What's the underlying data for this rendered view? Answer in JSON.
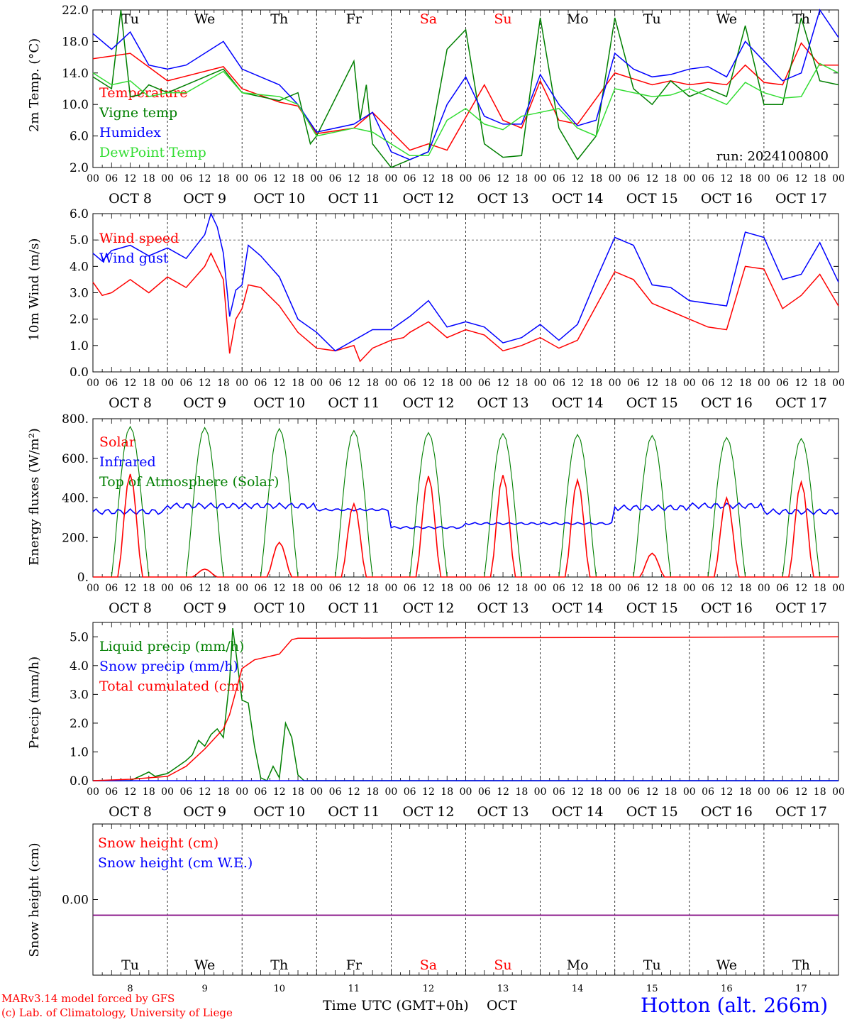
{
  "colors": {
    "red": "#ff0000",
    "green": "#007f00",
    "blue": "#0000ff",
    "lime": "#33dd33",
    "purple": "#7f007f",
    "grid": "#000000"
  },
  "x_axis": {
    "hour_ticks": [
      "00",
      "06",
      "12",
      "18"
    ],
    "day_labels": [
      "OCT  8",
      "OCT  9",
      "OCT 10",
      "OCT 11",
      "OCT 12",
      "OCT 13",
      "OCT 14",
      "OCT 15",
      "OCT 16",
      "OCT 17"
    ],
    "bottom_day_numbers": [
      "8",
      "9",
      "10",
      "11",
      "12",
      "13",
      "14",
      "15",
      "16",
      "17"
    ],
    "weekday_labels": [
      "Tu",
      "We",
      "Th",
      "Fr",
      "Sa",
      "Su",
      "Mo",
      "Tu",
      "We",
      "Th"
    ],
    "weekday_colors": [
      "#000000",
      "#000000",
      "#000000",
      "#000000",
      "#ff0000",
      "#ff0000",
      "#000000",
      "#000000",
      "#000000",
      "#000000"
    ],
    "xlabel": "Time UTC (GMT+0h)",
    "xlabel_suffix": "OCT"
  },
  "footer": {
    "credit_line1": "MARv3.14 model forced by GFS",
    "credit_line2": "(c) Lab. of Climatology, University of Liege",
    "station": "Hotton (alt. 266m)"
  },
  "chart_data": [
    {
      "type": "line",
      "ylabel": "2m Temp. (°C)",
      "ylim": [
        2,
        22
      ],
      "yticks": [
        "2.0",
        "6.0",
        "10.0",
        "14.0",
        "18.0",
        "22.0"
      ],
      "ytick_values": [
        2,
        6,
        10,
        14,
        18,
        22
      ],
      "annotation": "run: 2024100800",
      "x_unit": "hours since 2024-10-08 00 UTC",
      "series": [
        {
          "name": "Temperature",
          "color": "#ff0000",
          "x": [
            0,
            12,
            24,
            42,
            48,
            60,
            66,
            72,
            84,
            90,
            102,
            108,
            114,
            126,
            132,
            138,
            144,
            150,
            156,
            168,
            180,
            186,
            192,
            198,
            204,
            210,
            216,
            222,
            228,
            234,
            240
          ],
          "values": [
            15.8,
            16.5,
            13,
            14.8,
            12,
            10.3,
            9.8,
            6.3,
            7,
            9,
            4.2,
            5,
            4.2,
            12.5,
            8,
            7,
            13,
            8,
            7.5,
            14,
            12.5,
            13,
            12.5,
            12.8,
            12.5,
            15,
            12.8,
            12.5,
            17.8,
            15,
            15
          ]
        },
        {
          "name": "Vigne temp",
          "color": "#007f00",
          "x": [
            0,
            6,
            9,
            12,
            15,
            18,
            24,
            42,
            48,
            60,
            66,
            70,
            72,
            84,
            86,
            88,
            90,
            96,
            102,
            108,
            114,
            120,
            126,
            132,
            138,
            144,
            150,
            156,
            162,
            168,
            174,
            180,
            186,
            192,
            198,
            204,
            210,
            216,
            222,
            228,
            234,
            240
          ],
          "values": [
            13.5,
            12,
            22,
            11,
            11.2,
            12.5,
            11.5,
            14.5,
            11.5,
            10.5,
            11.5,
            5,
            6,
            15.5,
            8,
            12.5,
            5,
            2,
            3,
            4,
            17,
            19.5,
            5,
            3.3,
            3.5,
            21,
            7,
            3,
            6,
            21,
            12,
            10,
            13,
            11,
            12,
            11,
            20,
            10,
            10,
            21,
            13,
            12.5
          ]
        },
        {
          "name": "Humidex",
          "color": "#0000ff",
          "x": [
            0,
            6,
            12,
            18,
            24,
            30,
            42,
            48,
            60,
            66,
            72,
            84,
            90,
            96,
            102,
            108,
            114,
            120,
            126,
            132,
            138,
            144,
            150,
            156,
            162,
            168,
            174,
            180,
            186,
            192,
            198,
            204,
            210,
            216,
            222,
            228,
            234,
            240
          ],
          "values": [
            19,
            17,
            19.2,
            15,
            14.5,
            15,
            18,
            14.5,
            12.5,
            10,
            6.5,
            7.5,
            9,
            4,
            3,
            4,
            10,
            13.5,
            8.5,
            7.5,
            7.5,
            13.8,
            10,
            7.3,
            8,
            16.5,
            14.5,
            13.5,
            13.8,
            14.5,
            14.8,
            13.5,
            18,
            15.5,
            13,
            14,
            22,
            18.5
          ]
        },
        {
          "name": "DewPoint Temp",
          "color": "#33dd33",
          "x": [
            0,
            6,
            12,
            18,
            24,
            30,
            42,
            48,
            60,
            66,
            72,
            84,
            90,
            96,
            102,
            108,
            114,
            120,
            126,
            132,
            138,
            144,
            150,
            156,
            162,
            168,
            174,
            180,
            186,
            192,
            198,
            204,
            210,
            216,
            222,
            228,
            234,
            240
          ],
          "values": [
            14,
            12.5,
            13,
            11,
            11.5,
            11.5,
            14.2,
            11.5,
            11,
            10,
            6,
            7,
            6.5,
            5,
            3.5,
            3.5,
            8,
            9.5,
            7.5,
            6.8,
            8.5,
            9,
            9.5,
            7,
            6,
            12,
            11.5,
            11,
            11.2,
            12,
            11,
            10,
            12.8,
            11.5,
            10.8,
            11,
            15.2,
            14
          ]
        }
      ]
    },
    {
      "type": "line",
      "ylabel": "10m Wind (m/s)",
      "ylim": [
        0,
        6
      ],
      "yticks": [
        "0.0",
        "1.0",
        "2.0",
        "3.0",
        "4.0",
        "5.0",
        "6.0"
      ],
      "ytick_values": [
        0,
        1,
        2,
        3,
        4,
        5,
        6
      ],
      "dashed_reference": 5,
      "x_unit": "hours since 2024-10-08 00 UTC",
      "series": [
        {
          "name": "Wind speed",
          "color": "#ff0000",
          "x": [
            0,
            3,
            6,
            12,
            18,
            24,
            30,
            36,
            38,
            42,
            44,
            46,
            48,
            50,
            54,
            60,
            66,
            72,
            78,
            84,
            86,
            90,
            96,
            100,
            102,
            108,
            114,
            120,
            126,
            132,
            138,
            144,
            150,
            156,
            162,
            168,
            172,
            174,
            180,
            186,
            192,
            198,
            204,
            210,
            216,
            222,
            228,
            234,
            240
          ],
          "values": [
            3.4,
            2.9,
            3,
            3.5,
            3,
            3.6,
            3.2,
            4,
            4.5,
            3.5,
            0.7,
            2,
            2.4,
            3.3,
            3.2,
            2.5,
            1.5,
            0.9,
            0.8,
            1,
            0.4,
            0.9,
            1.2,
            1.3,
            1.5,
            1.9,
            1.3,
            1.6,
            1.4,
            0.8,
            1,
            1.3,
            0.9,
            1.2,
            2.5,
            3.8,
            3.6,
            3.5,
            2.6,
            2.3,
            2,
            1.7,
            1.6,
            4,
            3.9,
            2.4,
            2.9,
            3.7,
            2.5
          ]
        },
        {
          "name": "Wind gust",
          "color": "#0000ff",
          "x": [
            0,
            3,
            6,
            12,
            18,
            24,
            30,
            36,
            38,
            40,
            42,
            44,
            46,
            48,
            50,
            54,
            60,
            66,
            72,
            78,
            84,
            90,
            96,
            102,
            108,
            114,
            120,
            126,
            132,
            138,
            144,
            150,
            156,
            162,
            168,
            174,
            180,
            186,
            192,
            198,
            204,
            210,
            216,
            222,
            228,
            234,
            240
          ],
          "values": [
            4.5,
            4.2,
            4.6,
            4.8,
            4.4,
            4.7,
            4.3,
            5.2,
            6,
            5.5,
            4.5,
            2.1,
            3.1,
            3.3,
            4.8,
            4.4,
            3.6,
            2,
            1.5,
            0.8,
            1.2,
            1.6,
            1.6,
            2.1,
            2.7,
            1.7,
            1.9,
            1.7,
            1.1,
            1.3,
            1.8,
            1.2,
            1.8,
            3.5,
            5.1,
            4.8,
            3.3,
            3.2,
            2.7,
            2.6,
            2.5,
            5.3,
            5.1,
            3.5,
            3.7,
            4.9,
            3.4
          ]
        }
      ]
    },
    {
      "type": "line",
      "ylabel": "Energy fluxes (W/m²)",
      "ylim": [
        0,
        800
      ],
      "yticks": [
        "0.",
        "200.",
        "400.",
        "600.",
        "800."
      ],
      "ytick_values": [
        0,
        200,
        400,
        600,
        800
      ],
      "x_unit": "hours since 2024-10-08 00 UTC",
      "day_peaks": {
        "solar": [
          520,
          40,
          175,
          370,
          510,
          515,
          490,
          120,
          400,
          480
        ],
        "infrared": [
          330,
          360,
          360,
          340,
          250,
          270,
          270,
          350,
          360,
          330
        ],
        "toa_solar": [
          760,
          755,
          750,
          740,
          730,
          725,
          720,
          715,
          705,
          700
        ]
      },
      "series": [
        {
          "name": "Solar",
          "color": "#ff0000"
        },
        {
          "name": "Infrared",
          "color": "#0000ff"
        },
        {
          "name": "Top of Atmosphere (Solar)",
          "color": "#007f00"
        }
      ]
    },
    {
      "type": "line",
      "ylabel": "Precip (mm/h)",
      "ylim": [
        0,
        5.5
      ],
      "yticks": [
        "0.0",
        "1.0",
        "2.0",
        "3.0",
        "4.0",
        "5.0"
      ],
      "ytick_values": [
        0,
        1,
        2,
        3,
        4,
        5
      ],
      "x_unit": "hours since 2024-10-08 00 UTC",
      "series": [
        {
          "name": "Liquid precip (mm/h)",
          "color": "#007f00",
          "x": [
            0,
            12,
            14,
            16,
            18,
            20,
            22,
            24,
            30,
            32,
            34,
            36,
            38,
            40,
            42,
            44,
            45,
            46,
            48,
            50,
            52,
            54,
            56,
            58,
            60,
            62,
            64,
            66,
            68,
            72,
            240
          ],
          "values": [
            0,
            0,
            0.1,
            0.2,
            0.3,
            0.15,
            0.2,
            0.25,
            0.7,
            0.9,
            1.4,
            1.2,
            1.6,
            1.8,
            1.5,
            3.5,
            5.3,
            4.5,
            2.8,
            2.7,
            1.2,
            0.1,
            0,
            0.5,
            0.1,
            2,
            1.5,
            0.2,
            0,
            0,
            0
          ]
        },
        {
          "name": "Snow precip (mm/h)",
          "color": "#0000ff",
          "x": [
            0,
            240
          ],
          "values": [
            0,
            0
          ]
        },
        {
          "name": "Total cumulated (cm)",
          "color": "#ff0000",
          "x": [
            0,
            12,
            24,
            30,
            36,
            42,
            44,
            46,
            48,
            52,
            56,
            60,
            64,
            66,
            72,
            120,
            180,
            240
          ],
          "values": [
            0,
            0.05,
            0.15,
            0.5,
            1.1,
            1.8,
            2.3,
            3.1,
            3.9,
            4.2,
            4.3,
            4.4,
            4.9,
            4.95,
            4.95,
            4.97,
            4.98,
            5
          ]
        }
      ]
    },
    {
      "type": "line",
      "ylabel": "Snow height (cm)",
      "yticks": [
        "0.00"
      ],
      "ytick_values": [
        0
      ],
      "series": [
        {
          "name": "Snow height (cm)",
          "color": "#ff0000",
          "x": [
            0,
            240
          ],
          "values": [
            0,
            0
          ]
        },
        {
          "name": "Snow height (cm W.E.)",
          "color": "#0000ff",
          "x": [
            0,
            240
          ],
          "values": [
            0,
            0
          ]
        }
      ]
    }
  ]
}
